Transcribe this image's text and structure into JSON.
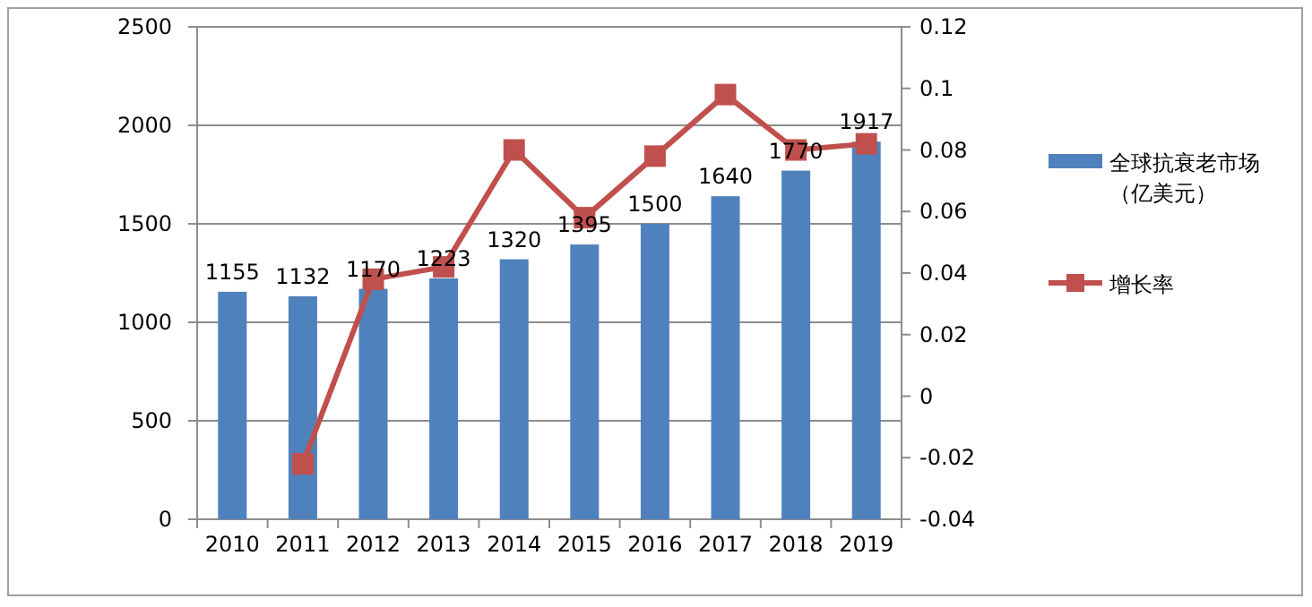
{
  "chart_data": {
    "type": "bar",
    "categories": [
      "2010",
      "2011",
      "2012",
      "2013",
      "2014",
      "2015",
      "2016",
      "2017",
      "2018",
      "2019"
    ],
    "series": [
      {
        "name": "全球抗衰老市场（亿美元）",
        "color": "#4f81bd",
        "values": [
          1155,
          1132,
          1170,
          1223,
          1320,
          1395,
          1500,
          1640,
          1770,
          1917
        ],
        "value_labels": [
          "1155",
          "1132",
          "1170",
          "1223",
          "1320",
          "1395",
          "1500",
          "1640",
          "1770",
          "1917"
        ]
      },
      {
        "name": "增长率",
        "type": "line",
        "axis": "y2",
        "color": "#c0504d",
        "marker": "square",
        "values": [
          null,
          -0.022,
          0.038,
          0.042,
          0.08,
          0.058,
          0.078,
          0.098,
          0.08,
          0.082
        ]
      }
    ],
    "ylim": [
      0,
      2500
    ],
    "yticks": [
      0,
      500,
      1000,
      1500,
      2000,
      2500
    ],
    "y2lim": [
      -0.04,
      0.12
    ],
    "y2ticks": [
      -0.04,
      -0.02,
      0,
      0.02,
      0.04,
      0.06,
      0.08,
      0.1,
      0.12
    ],
    "grid": "y",
    "legend": "right"
  }
}
